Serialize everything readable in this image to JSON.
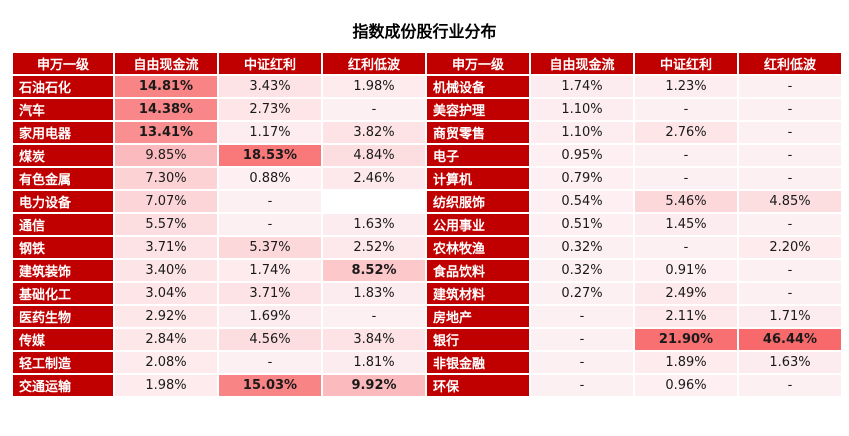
{
  "title": "指数成份股行业分布",
  "colors": {
    "header_bg": "#c00000",
    "cell_base": "#fdf0f3",
    "cell_max": "#f8696b"
  },
  "headers": [
    "申万一级",
    "自由现金流",
    "中证红利",
    "红利低波",
    "申万一级",
    "自由现金流",
    "中证红利",
    "红利低波"
  ],
  "rows": [
    [
      {
        "t": "石油石化"
      },
      {
        "t": "14.81%",
        "h": 0.8,
        "b": true
      },
      {
        "t": "3.43%",
        "h": 0.1
      },
      {
        "t": "1.98%",
        "h": 0.04
      },
      {
        "t": "机械设备"
      },
      {
        "t": "1.74%",
        "h": 0.03
      },
      {
        "t": "1.23%",
        "h": 0.02
      },
      {
        "t": "-",
        "h": 0
      }
    ],
    [
      {
        "t": "汽车"
      },
      {
        "t": "14.38%",
        "h": 0.78,
        "b": true
      },
      {
        "t": "2.73%",
        "h": 0.08
      },
      {
        "t": "-",
        "h": 0
      },
      {
        "t": "美容护理"
      },
      {
        "t": "1.10%",
        "h": 0.02
      },
      {
        "t": "-",
        "h": 0
      },
      {
        "t": "-",
        "h": 0
      }
    ],
    [
      {
        "t": "家用电器"
      },
      {
        "t": "13.41%",
        "h": 0.72,
        "b": true
      },
      {
        "t": "1.17%",
        "h": 0.02
      },
      {
        "t": "3.82%",
        "h": 0.1
      },
      {
        "t": "商贸零售"
      },
      {
        "t": "1.10%",
        "h": 0.02
      },
      {
        "t": "2.76%",
        "h": 0.08
      },
      {
        "t": "-",
        "h": 0
      }
    ],
    [
      {
        "t": "煤炭"
      },
      {
        "t": "9.85%",
        "h": 0.4
      },
      {
        "t": "18.53%",
        "h": 0.88,
        "b": true
      },
      {
        "t": "4.84%",
        "h": 0.14
      },
      {
        "t": "电子"
      },
      {
        "t": "0.95%",
        "h": 0.01
      },
      {
        "t": "-",
        "h": 0
      },
      {
        "t": "-",
        "h": 0
      }
    ],
    [
      {
        "t": "有色金属"
      },
      {
        "t": "7.30%",
        "h": 0.22
      },
      {
        "t": "0.88%",
        "h": 0.01
      },
      {
        "t": "2.46%",
        "h": 0.05
      },
      {
        "t": "计算机"
      },
      {
        "t": "0.79%",
        "h": 0.01
      },
      {
        "t": "-",
        "h": 0
      },
      {
        "t": "-",
        "h": 0
      }
    ],
    [
      {
        "t": "电力设备"
      },
      {
        "t": "7.07%",
        "h": 0.2
      },
      {
        "t": "-",
        "h": 0
      },
      {
        "t": "",
        "h": 0,
        "e": true
      },
      {
        "t": "纺织服饰"
      },
      {
        "t": "0.54%",
        "h": 0.01
      },
      {
        "t": "5.46%",
        "h": 0.18
      },
      {
        "t": "4.85%",
        "h": 0.14
      }
    ],
    [
      {
        "t": "通信"
      },
      {
        "t": "5.57%",
        "h": 0.14
      },
      {
        "t": "-",
        "h": 0
      },
      {
        "t": "1.63%",
        "h": 0.03
      },
      {
        "t": "公用事业"
      },
      {
        "t": "0.51%",
        "h": 0.01
      },
      {
        "t": "1.45%",
        "h": 0.03
      },
      {
        "t": "-",
        "h": 0
      }
    ],
    [
      {
        "t": "钢铁"
      },
      {
        "t": "3.71%",
        "h": 0.1
      },
      {
        "t": "5.37%",
        "h": 0.18
      },
      {
        "t": "2.52%",
        "h": 0.05
      },
      {
        "t": "农林牧渔"
      },
      {
        "t": "0.32%",
        "h": 0
      },
      {
        "t": "-",
        "h": 0
      },
      {
        "t": "2.20%",
        "h": 0.04
      }
    ],
    [
      {
        "t": "建筑装饰"
      },
      {
        "t": "3.40%",
        "h": 0.09
      },
      {
        "t": "1.74%",
        "h": 0.04
      },
      {
        "t": "8.52%",
        "h": 0.3,
        "b": true
      },
      {
        "t": "食品饮料"
      },
      {
        "t": "0.32%",
        "h": 0
      },
      {
        "t": "0.91%",
        "h": 0.01
      },
      {
        "t": "-",
        "h": 0
      }
    ],
    [
      {
        "t": "基础化工"
      },
      {
        "t": "3.04%",
        "h": 0.08
      },
      {
        "t": "3.71%",
        "h": 0.1
      },
      {
        "t": "1.83%",
        "h": 0.03
      },
      {
        "t": "建筑材料"
      },
      {
        "t": "0.27%",
        "h": 0
      },
      {
        "t": "2.49%",
        "h": 0.06
      },
      {
        "t": "-",
        "h": 0
      }
    ],
    [
      {
        "t": "医药生物"
      },
      {
        "t": "2.92%",
        "h": 0.07
      },
      {
        "t": "1.69%",
        "h": 0.03
      },
      {
        "t": "-",
        "h": 0
      },
      {
        "t": "房地产"
      },
      {
        "t": "-",
        "h": 0
      },
      {
        "t": "2.11%",
        "h": 0.05
      },
      {
        "t": "1.71%",
        "h": 0.03
      }
    ],
    [
      {
        "t": "传媒"
      },
      {
        "t": "2.84%",
        "h": 0.07
      },
      {
        "t": "4.56%",
        "h": 0.14
      },
      {
        "t": "3.84%",
        "h": 0.1
      },
      {
        "t": "银行"
      },
      {
        "t": "-",
        "h": 0
      },
      {
        "t": "21.90%",
        "h": 0.95,
        "b": true
      },
      {
        "t": "46.44%",
        "h": 1.0,
        "b": true
      }
    ],
    [
      {
        "t": "轻工制造"
      },
      {
        "t": "2.08%",
        "h": 0.04
      },
      {
        "t": "-",
        "h": 0
      },
      {
        "t": "1.81%",
        "h": 0.03
      },
      {
        "t": "非银金融"
      },
      {
        "t": "-",
        "h": 0
      },
      {
        "t": "1.89%",
        "h": 0.04
      },
      {
        "t": "1.63%",
        "h": 0.03
      }
    ],
    [
      {
        "t": "交通运输"
      },
      {
        "t": "1.98%",
        "h": 0.04
      },
      {
        "t": "15.03%",
        "h": 0.8,
        "b": true
      },
      {
        "t": "9.92%",
        "h": 0.4,
        "b": true
      },
      {
        "t": "环保"
      },
      {
        "t": "-",
        "h": 0
      },
      {
        "t": "0.96%",
        "h": 0.01
      },
      {
        "t": "-",
        "h": 0
      }
    ]
  ]
}
